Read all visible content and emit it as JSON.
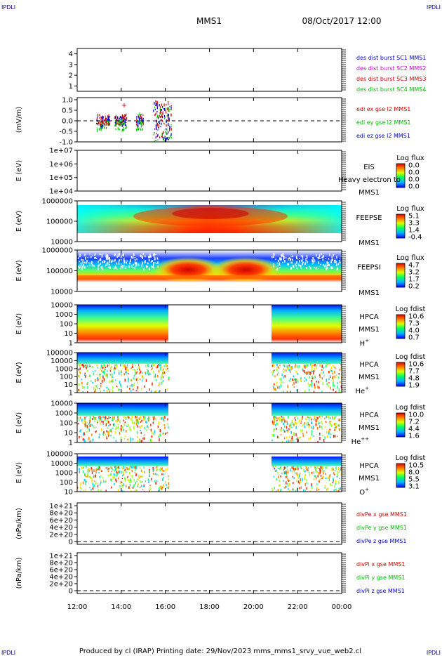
{
  "header": {
    "corner_left": "IPDLI",
    "corner_right": "IPDLI",
    "title": "MMS1",
    "datetime": "08/Oct/2017 12:00"
  },
  "footer": {
    "text": "Produced by cl (IRAP)   Printing date: 29/Nov/2023   mms_mms1_srvy_vue_web2.cl",
    "corner_left": "IPDLI",
    "corner_right": "IPDLI"
  },
  "chart_data": [
    {
      "type": "line",
      "ylabel": "",
      "ylim": [
        0.5,
        4.5
      ],
      "yticks": [
        "1",
        "2",
        "3",
        "4"
      ],
      "legend": [
        {
          "label": "des dist burst SC1 MMS1",
          "color": "#0000cc"
        },
        {
          "label": "des dist burst SC2 MMS2",
          "color": "#cc00cc"
        },
        {
          "label": "des dist burst SC3 MMS3",
          "color": "#cc0000"
        },
        {
          "label": "des dist burst SC4 MMS4",
          "color": "#00bb00"
        }
      ]
    },
    {
      "type": "line",
      "ylabel": "(mV/m)",
      "ylim": [
        -1.0,
        1.1
      ],
      "yticks": [
        "1.0",
        "0.5",
        "0.0",
        "-0.5",
        "-1.0"
      ],
      "legend": [
        {
          "label": "edi ex gse l2 MMS1",
          "color": "#cc0000"
        },
        {
          "label": "edi ey gse l2 MMS1",
          "color": "#00bb00"
        },
        {
          "label": "edi ez gse l2 MMS1",
          "color": "#0000cc"
        }
      ]
    },
    {
      "type": "heatmap",
      "ylabel": "E (eV)",
      "yticks": [
        "1e+07",
        "1e+06",
        "1e+05",
        "1e+04"
      ],
      "instrument": "EIS",
      "sc": "MMS1",
      "overlay": "Heavy electron to",
      "colorbar": {
        "title": "Log flux",
        "ticks": [
          "0.0",
          "0.0",
          "0.0",
          "0.0"
        ]
      }
    },
    {
      "type": "heatmap",
      "ylabel": "E (eV)",
      "yticks": [
        "1000000",
        "100000",
        "10000"
      ],
      "instrument": "FEEPSE",
      "sc": "MMS1",
      "colorbar": {
        "title": "Log flux",
        "ticks": [
          "5.1",
          "3.3",
          "1.4",
          "-0.4"
        ]
      }
    },
    {
      "type": "heatmap",
      "ylabel": "E (eV)",
      "yticks": [
        "1000000",
        "100000",
        "10000"
      ],
      "instrument": "FEEPSI",
      "sc": "MMS1",
      "colorbar": {
        "title": "Log flux",
        "ticks": [
          "4.7",
          "3.2",
          "1.7",
          "0.2"
        ]
      }
    },
    {
      "type": "heatmap",
      "ylabel": "E (eV)",
      "yticks": [
        "10000",
        "1000",
        "100",
        "10",
        "1"
      ],
      "instrument": "HPCA",
      "sc": "MMS1",
      "species": "H",
      "charge": "+",
      "colorbar": {
        "title": "Log fdist",
        "ticks": [
          "10.6",
          "7.3",
          "4.0",
          "0.7"
        ]
      }
    },
    {
      "type": "heatmap",
      "ylabel": "E (eV)",
      "yticks": [
        "100000",
        "10000",
        "1000",
        "100",
        "10",
        "1"
      ],
      "instrument": "HPCA",
      "sc": "MMS1",
      "species": "He",
      "charge": "+",
      "colorbar": {
        "title": "Log fdist",
        "ticks": [
          "10.6",
          "7.7",
          "4.8",
          "1.9"
        ]
      }
    },
    {
      "type": "heatmap",
      "ylabel": "E (eV)",
      "yticks": [
        "10000",
        "1000",
        "100",
        "10",
        "1"
      ],
      "instrument": "HPCA",
      "sc": "MMS1",
      "species": "He",
      "charge": "++",
      "colorbar": {
        "title": "Log fdist",
        "ticks": [
          "10.0",
          "7.2",
          "4.4",
          "1.6"
        ]
      }
    },
    {
      "type": "heatmap",
      "ylabel": "E (eV)",
      "yticks": [
        "100000",
        "10000",
        "1000",
        "100",
        "10"
      ],
      "instrument": "HPCA",
      "sc": "MMS1",
      "species": "O",
      "charge": "+",
      "colorbar": {
        "title": "Log fdist",
        "ticks": [
          "10.5",
          "8.0",
          "5.5",
          "3.1"
        ]
      }
    },
    {
      "type": "line",
      "ylabel": "(nPa/km)",
      "yticks": [
        "1e+21",
        "8e+20",
        "6e+20",
        "4e+20",
        "2e+20",
        "0"
      ],
      "legend": [
        {
          "label": "divPe x gse MMS1",
          "color": "#cc0000"
        },
        {
          "label": "divPe y gse MMS1",
          "color": "#00bb00"
        },
        {
          "label": "divPe z gse MMS1",
          "color": "#0000cc"
        }
      ]
    },
    {
      "type": "line",
      "ylabel": "(nPa/km)",
      "yticks": [
        "1e+21",
        "8e+20",
        "6e+20",
        "4e+20",
        "2e+20",
        "0"
      ],
      "legend": [
        {
          "label": "divPi x gse MMS1",
          "color": "#cc0000"
        },
        {
          "label": "divPi y gse MMS1",
          "color": "#00bb00"
        },
        {
          "label": "divPi z gse MMS1",
          "color": "#0000cc"
        }
      ]
    }
  ],
  "x_axis": {
    "ticks": [
      "12:00",
      "14:00",
      "16:00",
      "18:00",
      "20:00",
      "22:00",
      "00:00"
    ]
  }
}
